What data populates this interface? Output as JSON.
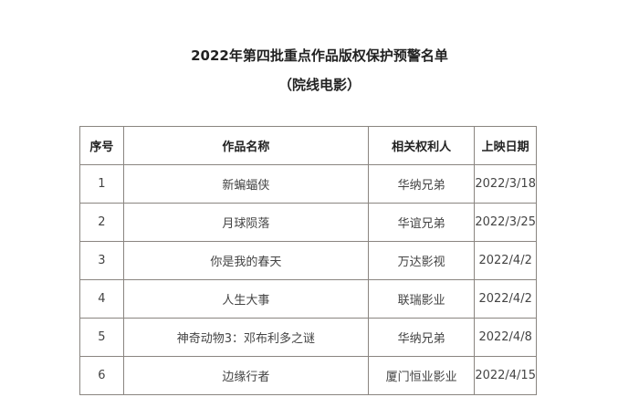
{
  "title": "2022年第四批重点作品版权保护预警名单",
  "subtitle": "（院线电影）",
  "headers": [
    "序号",
    "作品名称",
    "相关权利人",
    "上映日期"
  ],
  "rows": [
    [
      "1",
      "新蝙蝠侠",
      "华纳兄弟",
      "2022/3/18"
    ],
    [
      "2",
      "月球陨落",
      "华谊兄弟",
      "2022/3/25"
    ],
    [
      "3",
      "你是我的春天",
      "万达影视",
      "2022/4/2"
    ],
    [
      "4",
      "人生大事",
      "联瑞影业",
      "2022/4/2"
    ],
    [
      "5",
      "神奇动物3：邓布利多之谜",
      "华纳兄弟",
      "2022/4/8"
    ],
    [
      "6",
      "边缘行者",
      "厦门恒业影业",
      "2022/4/15"
    ]
  ]
}
